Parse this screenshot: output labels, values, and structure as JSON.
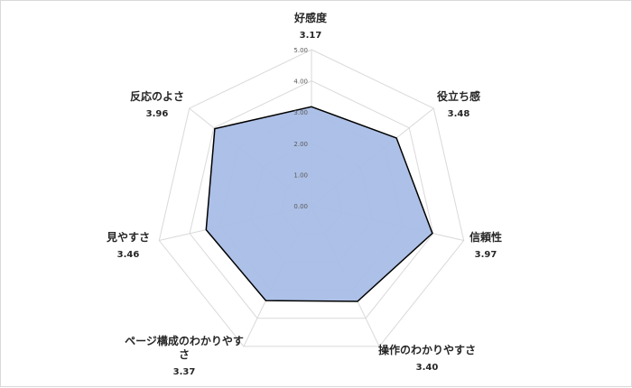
{
  "chart_data": {
    "type": "radar",
    "title": "",
    "rlim": [
      0,
      5
    ],
    "ticks": [
      "0.00",
      "1.00",
      "2.00",
      "3.00",
      "4.00",
      "5.00"
    ],
    "grid": true,
    "legend": "none",
    "colors": {
      "fill": "#a9bde6",
      "stroke": "#000000",
      "grid": "#d9d9d9"
    },
    "categories": [
      {
        "name": [
          "好感度"
        ],
        "value_label": "3.17"
      },
      {
        "name": [
          "役立ち感"
        ],
        "value_label": "3.48"
      },
      {
        "name": [
          "信頼性"
        ],
        "value_label": "3.97"
      },
      {
        "name": [
          "操作のわかりやすさ"
        ],
        "value_label": "3.40"
      },
      {
        "name": [
          "ページ構成のわかりやす",
          "さ"
        ],
        "value_label": "3.37"
      },
      {
        "name": [
          "見やすさ"
        ],
        "value_label": "3.46"
      },
      {
        "name": [
          "反応のよさ"
        ],
        "value_label": "3.96"
      }
    ],
    "values": [
      3.17,
      3.48,
      3.97,
      3.4,
      3.37,
      3.46,
      3.96
    ]
  }
}
